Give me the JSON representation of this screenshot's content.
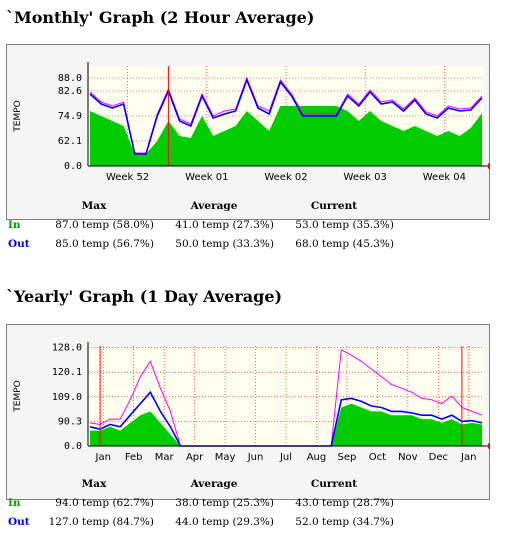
{
  "colors": {
    "in_fill": "#00cc00",
    "out_line": "#0000ff",
    "max_out": "#ff00ff",
    "max_in": "#006600",
    "marker": "#ff0000",
    "plot_bg": "#fffff0",
    "grid": "#ff0000"
  },
  "monthly": {
    "title": "`Monthly' Graph (2 Hour Average)",
    "stats": {
      "headers": [
        "Max",
        "Average",
        "Current"
      ],
      "in_label": "In",
      "out_label": "Out",
      "in": [
        "87.0 temp (58.0%)",
        "41.0 temp (27.3%)",
        "53.0 temp (35.3%)"
      ],
      "out": [
        "85.0 temp (56.7%)",
        "50.0 temp (33.3%)",
        "68.0 temp (45.3%)"
      ]
    }
  },
  "yearly": {
    "title": "`Yearly' Graph (1 Day Average)",
    "stats": {
      "headers": [
        "Max",
        "Average",
        "Current"
      ],
      "in_label": "In",
      "out_label": "Out",
      "in": [
        "94.0 temp (62.7%)",
        "38.0 temp (25.3%)",
        "43.0 temp (28.7%)"
      ],
      "out": [
        "127.0 temp (84.7%)",
        "44.0 temp (29.3%)",
        "52.0 temp (34.7%)"
      ]
    }
  },
  "chart_data": [
    {
      "type": "area",
      "ylabel": "TEMPO",
      "y_ticks": [
        "88.0",
        "82.6",
        "74.9",
        "62.1",
        "0.0"
      ],
      "x_ticks": [
        "Week 52",
        "Week 01",
        "Week 02",
        "Week 03",
        "Week 04"
      ],
      "x": [
        0,
        1,
        2,
        3,
        4,
        5,
        6,
        7,
        8,
        9,
        10,
        11,
        12,
        13,
        14,
        15,
        16,
        17,
        18,
        19,
        20,
        21,
        22,
        23,
        24,
        25,
        26,
        27,
        28,
        29,
        30,
        31,
        32,
        33,
        34,
        35
      ],
      "series": [
        {
          "name": "In",
          "values": [
            55,
            50,
            45,
            40,
            12,
            12,
            25,
            45,
            30,
            28,
            50,
            30,
            35,
            40,
            55,
            45,
            35,
            60,
            60,
            60,
            60,
            60,
            60,
            55,
            45,
            55,
            45,
            40,
            35,
            40,
            35,
            30,
            35,
            30,
            38,
            53
          ]
        },
        {
          "name": "Out",
          "values": [
            72,
            62,
            58,
            62,
            12,
            12,
            50,
            75,
            45,
            40,
            70,
            48,
            52,
            55,
            86,
            58,
            52,
            84,
            70,
            50,
            50,
            50,
            50,
            70,
            60,
            74,
            62,
            64,
            55,
            66,
            52,
            48,
            58,
            55,
            56,
            68
          ]
        },
        {
          "name": "Max Out",
          "values": [
            74,
            64,
            60,
            64,
            13,
            13,
            52,
            77,
            47,
            42,
            72,
            50,
            55,
            57,
            88,
            60,
            55,
            86,
            72,
            52,
            52,
            52,
            52,
            72,
            62,
            76,
            64,
            66,
            57,
            68,
            54,
            50,
            60,
            57,
            58,
            70
          ]
        }
      ]
    },
    {
      "type": "area",
      "ylabel": "TEMPO",
      "y_ticks": [
        "128.0",
        "120.1",
        "109.0",
        "90.3",
        "0.0"
      ],
      "x_ticks": [
        "Jan",
        "Feb",
        "Mar",
        "Apr",
        "May",
        "Jun",
        "Jul",
        "Aug",
        "Sep",
        "Oct",
        "Nov",
        "Dec",
        "Jan"
      ],
      "x": [
        0,
        1,
        2,
        3,
        4,
        5,
        6,
        7,
        8,
        9,
        10,
        11,
        12,
        13,
        14,
        15,
        16,
        17,
        18,
        19,
        20,
        21,
        22,
        23,
        24,
        25,
        26,
        27,
        28,
        29,
        30,
        31,
        32,
        33,
        34,
        35,
        36,
        37,
        38,
        39
      ],
      "series": [
        {
          "name": "In",
          "values": [
            20,
            20,
            25,
            20,
            30,
            40,
            45,
            30,
            15,
            0,
            0,
            0,
            0,
            0,
            0,
            0,
            0,
            0,
            0,
            0,
            0,
            0,
            0,
            0,
            0,
            50,
            55,
            50,
            45,
            45,
            40,
            40,
            40,
            35,
            35,
            30,
            35,
            28,
            30,
            28
          ]
        },
        {
          "name": "Out",
          "values": [
            25,
            22,
            28,
            25,
            40,
            55,
            70,
            45,
            25,
            0,
            0,
            0,
            0,
            0,
            0,
            0,
            0,
            0,
            0,
            0,
            0,
            0,
            0,
            0,
            0,
            60,
            62,
            58,
            52,
            50,
            45,
            45,
            43,
            40,
            40,
            35,
            40,
            32,
            33,
            30
          ]
        },
        {
          "name": "Max Out",
          "values": [
            30,
            28,
            35,
            35,
            60,
            90,
            110,
            75,
            45,
            0,
            0,
            0,
            0,
            0,
            0,
            0,
            0,
            0,
            0,
            0,
            0,
            0,
            0,
            0,
            0,
            125,
            118,
            110,
            100,
            90,
            80,
            75,
            70,
            62,
            60,
            55,
            65,
            50,
            45,
            40
          ]
        }
      ]
    }
  ]
}
